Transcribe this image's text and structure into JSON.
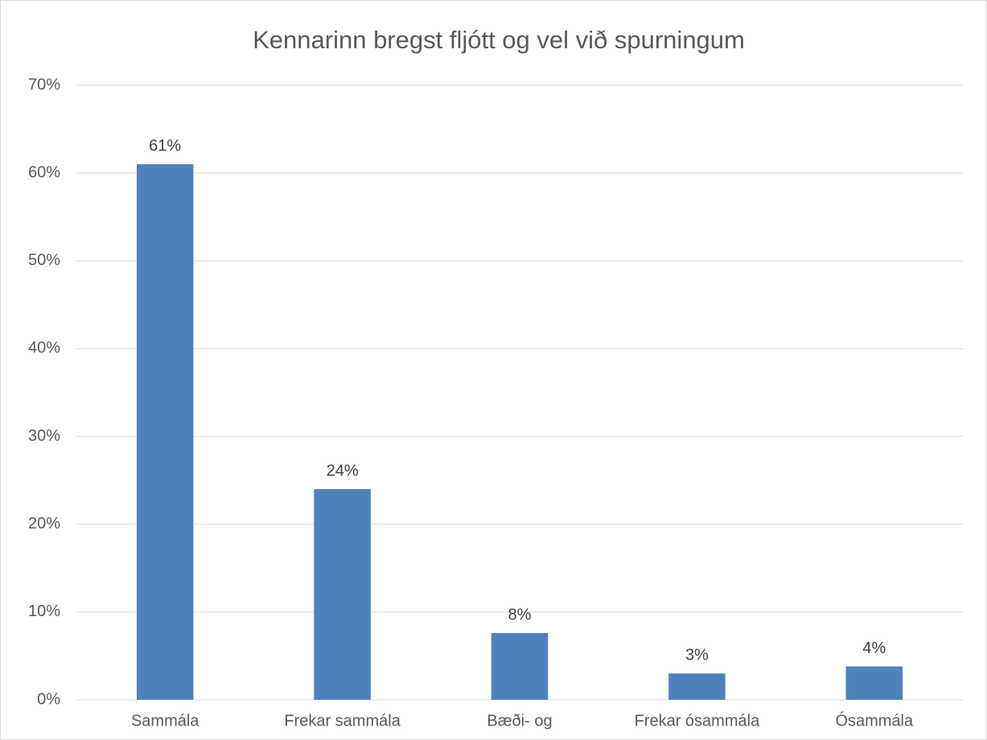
{
  "chart_data": {
    "type": "bar",
    "title": "Kennarinn bregst fljótt og vel við spurningum",
    "categories": [
      "Sammála",
      "Frekar sammála",
      "Bæði- og",
      "Frekar ósammála",
      "Ósammála"
    ],
    "values": [
      61,
      24,
      7.6,
      3,
      3.8
    ],
    "value_labels": [
      "61%",
      "24%",
      "8%",
      "3%",
      "4%"
    ],
    "color": "#4f81bd",
    "ylim": [
      0,
      70
    ],
    "yticks": [
      {
        "value": 0,
        "label": "0%"
      },
      {
        "value": 10,
        "label": "10%"
      },
      {
        "value": 20,
        "label": "20%"
      },
      {
        "value": 30,
        "label": "30%"
      },
      {
        "value": 40,
        "label": "40%"
      },
      {
        "value": 50,
        "label": "50%"
      },
      {
        "value": 60,
        "label": "60%"
      },
      {
        "value": 70,
        "label": "70%"
      }
    ],
    "grid": true
  }
}
